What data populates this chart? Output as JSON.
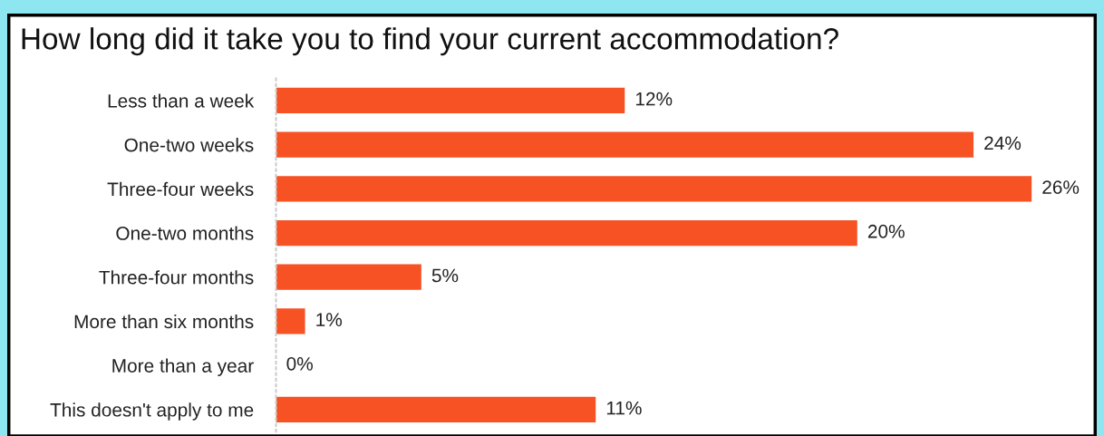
{
  "chart_data": {
    "type": "bar",
    "orientation": "horizontal",
    "title": "How long did it take you to find your current accommodation?",
    "categories": [
      "Less than a week",
      "One-two weeks",
      "Three-four weeks",
      "One-two months",
      "Three-four months",
      "More than six months",
      "More than a year",
      "This doesn't apply to me"
    ],
    "values": [
      12,
      24,
      26,
      20,
      5,
      1,
      0,
      11
    ],
    "value_labels": [
      "12%",
      "24%",
      "26%",
      "20%",
      "5%",
      "1%",
      "0%",
      "11%"
    ],
    "color": "#f65224",
    "xlim": [
      0,
      28.3
    ],
    "tick_labels": "y",
    "grid": false,
    "legend": false
  }
}
